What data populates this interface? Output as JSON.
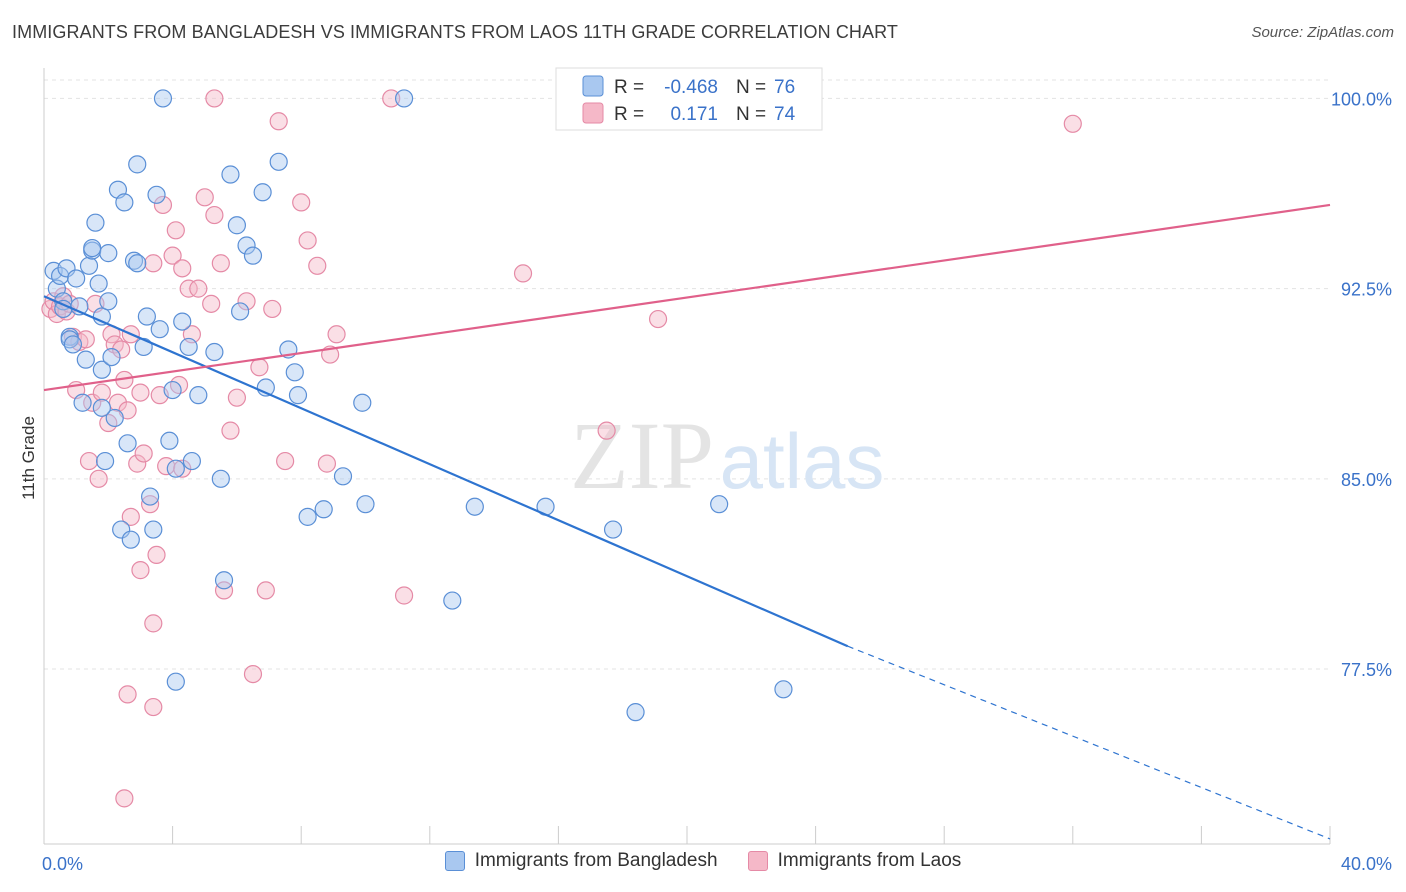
{
  "title": "IMMIGRANTS FROM BANGLADESH VS IMMIGRANTS FROM LAOS 11TH GRADE CORRELATION CHART",
  "source": "Source: ZipAtlas.com",
  "watermark": {
    "zip": "ZIP",
    "atlas": "atlas"
  },
  "colors": {
    "blue_fill": "#a9c8f0",
    "blue_stroke": "#5a8fd6",
    "blue_line": "#2e74d0",
    "pink_fill": "#f5b8c8",
    "pink_stroke": "#e58aa6",
    "pink_line": "#e0608a",
    "value_text": "#3a72c9",
    "grid": "#e3e3e3"
  },
  "legend": {
    "rows": [
      {
        "r_label": "R =",
        "r_value": "-0.468",
        "n_label": "N =",
        "n_value": "76"
      },
      {
        "r_label": "R =",
        "r_value": "0.171",
        "n_label": "N =",
        "n_value": "74"
      }
    ]
  },
  "bottom_legend": [
    "Immigrants from Bangladesh",
    "Immigrants from Laos"
  ],
  "chart_data": {
    "type": "scatter",
    "xlabel": "",
    "ylabel": "11th Grade",
    "xlim": [
      0,
      40
    ],
    "ylim": [
      70.6,
      101.2
    ],
    "x_tick_labels": [
      "0.0%",
      "40.0%"
    ],
    "y_ticks": [
      77.5,
      85.0,
      92.5,
      100.0
    ],
    "y_tick_labels": [
      "77.5%",
      "85.0%",
      "92.5%",
      "100.0%"
    ],
    "grid": "horizontal dashed",
    "legend_position": "top-center",
    "series": [
      {
        "name": "Immigrants from Bangladesh",
        "r": -0.468,
        "n": 76,
        "trend": {
          "x0": 0,
          "y0": 92.2,
          "x1": 25.0,
          "y1": 78.4,
          "dash_to_x": 40,
          "dash_to_y": 70.8
        },
        "points": [
          [
            0.3,
            93.2
          ],
          [
            0.4,
            92.5
          ],
          [
            0.5,
            93.0
          ],
          [
            0.6,
            92.0
          ],
          [
            0.6,
            91.7
          ],
          [
            0.7,
            93.3
          ],
          [
            0.8,
            90.6
          ],
          [
            0.8,
            90.5
          ],
          [
            0.9,
            90.3
          ],
          [
            1.0,
            92.9
          ],
          [
            1.1,
            91.8
          ],
          [
            1.2,
            88.0
          ],
          [
            1.3,
            89.7
          ],
          [
            1.4,
            93.4
          ],
          [
            1.5,
            94.0
          ],
          [
            1.5,
            94.1
          ],
          [
            1.6,
            95.1
          ],
          [
            1.7,
            92.7
          ],
          [
            1.8,
            91.4
          ],
          [
            1.8,
            89.3
          ],
          [
            1.9,
            85.7
          ],
          [
            2.0,
            92.0
          ],
          [
            2.0,
            93.9
          ],
          [
            2.1,
            89.8
          ],
          [
            2.2,
            87.4
          ],
          [
            2.3,
            96.4
          ],
          [
            2.4,
            83.0
          ],
          [
            2.5,
            95.9
          ],
          [
            2.6,
            86.4
          ],
          [
            2.7,
            82.6
          ],
          [
            2.8,
            93.6
          ],
          [
            2.9,
            97.4
          ],
          [
            2.9,
            93.5
          ],
          [
            3.1,
            90.2
          ],
          [
            3.2,
            91.4
          ],
          [
            3.3,
            84.3
          ],
          [
            3.4,
            83.0
          ],
          [
            3.5,
            96.2
          ],
          [
            3.6,
            90.9
          ],
          [
            3.7,
            100.0
          ],
          [
            3.9,
            86.5
          ],
          [
            4.0,
            88.5
          ],
          [
            4.1,
            85.4
          ],
          [
            4.3,
            91.2
          ],
          [
            4.5,
            90.2
          ],
          [
            4.6,
            85.7
          ],
          [
            4.8,
            88.3
          ],
          [
            5.3,
            90.0
          ],
          [
            5.5,
            85.0
          ],
          [
            5.6,
            81.0
          ],
          [
            5.8,
            97.0
          ],
          [
            6.0,
            95.0
          ],
          [
            6.1,
            91.6
          ],
          [
            6.3,
            94.2
          ],
          [
            6.5,
            93.8
          ],
          [
            6.8,
            96.3
          ],
          [
            6.9,
            88.6
          ],
          [
            7.3,
            97.5
          ],
          [
            7.6,
            90.1
          ],
          [
            7.8,
            89.2
          ],
          [
            7.9,
            88.3
          ],
          [
            8.2,
            83.5
          ],
          [
            8.7,
            83.8
          ],
          [
            9.3,
            85.1
          ],
          [
            9.9,
            88.0
          ],
          [
            10.0,
            84.0
          ],
          [
            11.2,
            100.0
          ],
          [
            12.7,
            80.2
          ],
          [
            13.4,
            83.9
          ],
          [
            15.6,
            83.9
          ],
          [
            17.7,
            83.0
          ],
          [
            18.4,
            75.8
          ],
          [
            21.0,
            84.0
          ],
          [
            23.0,
            76.7
          ],
          [
            1.8,
            87.8
          ],
          [
            4.1,
            77.0
          ]
        ]
      },
      {
        "name": "Immigrants from Laos",
        "r": 0.171,
        "n": 74,
        "trend": {
          "x0": 0,
          "y0": 88.5,
          "x1": 40,
          "y1": 95.8
        },
        "points": [
          [
            0.2,
            91.7
          ],
          [
            0.3,
            92.0
          ],
          [
            0.4,
            91.5
          ],
          [
            0.5,
            91.8
          ],
          [
            0.6,
            92.2
          ],
          [
            0.7,
            91.6
          ],
          [
            0.8,
            91.9
          ],
          [
            0.9,
            90.6
          ],
          [
            1.0,
            88.5
          ],
          [
            1.1,
            90.4
          ],
          [
            1.3,
            90.5
          ],
          [
            1.4,
            85.7
          ],
          [
            1.5,
            88.0
          ],
          [
            1.6,
            91.9
          ],
          [
            1.7,
            85.0
          ],
          [
            1.8,
            88.4
          ],
          [
            2.0,
            87.2
          ],
          [
            2.1,
            90.7
          ],
          [
            2.2,
            90.3
          ],
          [
            2.3,
            88.0
          ],
          [
            2.4,
            90.1
          ],
          [
            2.5,
            88.9
          ],
          [
            2.6,
            87.7
          ],
          [
            2.7,
            90.7
          ],
          [
            2.9,
            85.6
          ],
          [
            3.0,
            88.4
          ],
          [
            3.1,
            86.0
          ],
          [
            3.3,
            84.0
          ],
          [
            3.4,
            93.5
          ],
          [
            3.5,
            82.0
          ],
          [
            3.6,
            88.3
          ],
          [
            3.7,
            95.8
          ],
          [
            3.8,
            85.5
          ],
          [
            4.0,
            93.8
          ],
          [
            4.1,
            94.8
          ],
          [
            4.2,
            88.7
          ],
          [
            4.3,
            93.3
          ],
          [
            4.5,
            92.5
          ],
          [
            4.6,
            90.7
          ],
          [
            4.8,
            92.5
          ],
          [
            5.0,
            96.1
          ],
          [
            5.2,
            91.9
          ],
          [
            5.3,
            95.4
          ],
          [
            5.5,
            93.5
          ],
          [
            5.6,
            80.6
          ],
          [
            5.8,
            86.9
          ],
          [
            6.0,
            88.2
          ],
          [
            6.3,
            92.0
          ],
          [
            6.5,
            77.3
          ],
          [
            6.7,
            89.4
          ],
          [
            6.9,
            80.6
          ],
          [
            7.1,
            91.7
          ],
          [
            7.3,
            99.1
          ],
          [
            7.5,
            85.7
          ],
          [
            8.0,
            95.9
          ],
          [
            8.2,
            94.4
          ],
          [
            8.5,
            93.4
          ],
          [
            8.8,
            85.6
          ],
          [
            8.9,
            89.9
          ],
          [
            9.1,
            90.7
          ],
          [
            10.8,
            100.0
          ],
          [
            11.2,
            80.4
          ],
          [
            14.9,
            93.1
          ],
          [
            17.5,
            86.9
          ],
          [
            19.1,
            91.3
          ],
          [
            32.0,
            99.0
          ],
          [
            5.3,
            100.0
          ],
          [
            2.6,
            76.5
          ],
          [
            3.0,
            81.4
          ],
          [
            3.4,
            76.0
          ],
          [
            4.3,
            85.4
          ],
          [
            2.7,
            83.5
          ],
          [
            2.5,
            72.4
          ],
          [
            3.4,
            79.3
          ]
        ]
      }
    ]
  }
}
